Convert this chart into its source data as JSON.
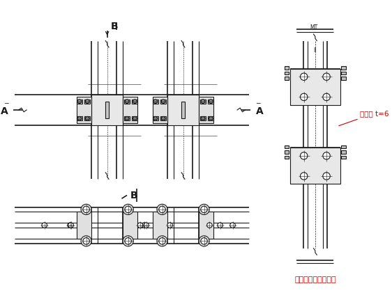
{
  "bg_color": "#ffffff",
  "lc": "#1a1a1a",
  "red_color": "#cc0000",
  "title": "框架柱－梁节点详图",
  "ann_label": "加劲助 t=6",
  "label_A": "A",
  "label_B": "B",
  "figsize": [
    5.62,
    4.21
  ],
  "dpi": 100
}
